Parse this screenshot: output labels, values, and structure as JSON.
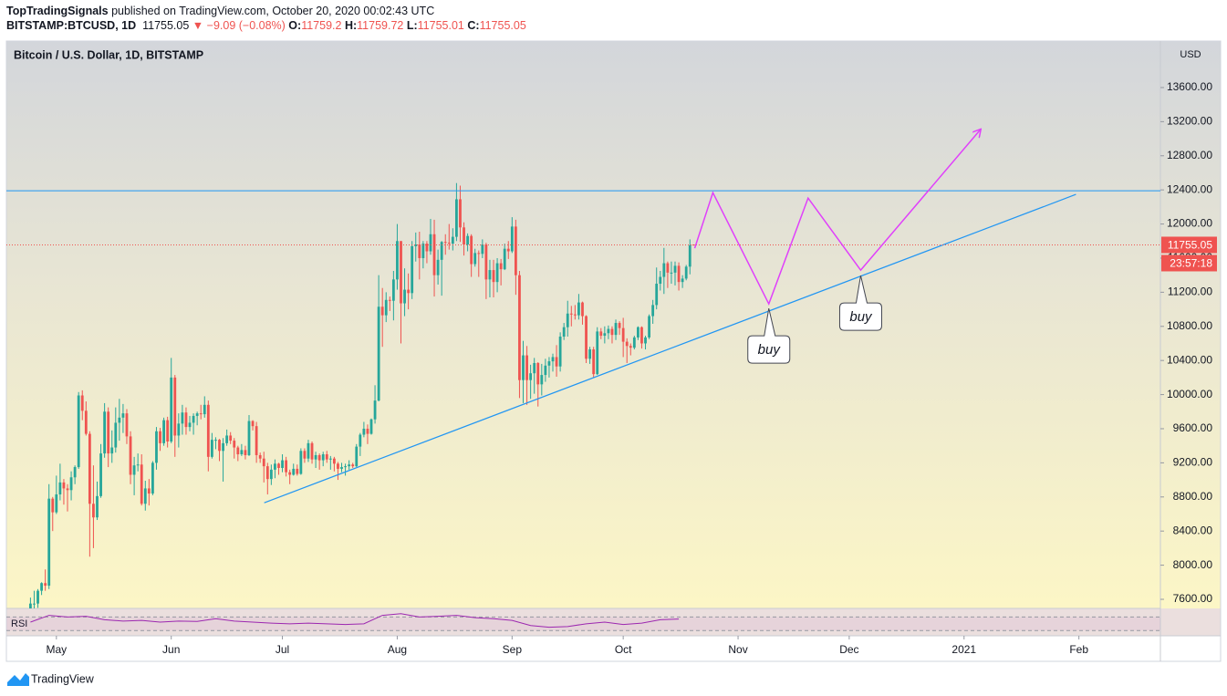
{
  "header": {
    "author": "TopTradingSignals",
    "published": " published on TradingView.com, October 20, 2020 00:02:43 UTC",
    "symbol": "BITSTAMP:BTCUSD, 1D",
    "change": "▼ −9.09 (−0.08%)",
    "o_label": "O:",
    "h_label": "H:",
    "l_label": "L:",
    "c_label": "C:"
  },
  "chart_data": {
    "type": "candlestick",
    "title": "Bitcoin / U.S. Dollar, 1D, BITSTAMP",
    "currency": "USD",
    "countdown": "23:57:18",
    "up_color": "#26a69a",
    "down_color": "#ef5350",
    "open": [
      7490,
      7550,
      7550,
      7700,
      7790,
      7760,
      8780,
      8620,
      8830,
      8970,
      8900,
      8880,
      9030,
      9150,
      9990,
      9810,
      9540,
      8720,
      8560,
      8810,
      9310,
      9800,
      9310,
      9380,
      9670,
      9730,
      9780,
      9510,
      9060,
      9170,
      9180,
      8720,
      8900,
      8840,
      9200,
      9570,
      9430,
      9700,
      9450,
      10200,
      9520,
      9660,
      9790,
      9620,
      9670,
      9750,
      9780,
      9770,
      9880,
      9270,
      9470,
      9470,
      9340,
      9430,
      9520,
      9460,
      9380,
      9300,
      9350,
      9290,
      9690,
      9630,
      9290,
      9250,
      9160,
      9010,
      9120,
      9190,
      9140,
      9230,
      9090,
      9060,
      9130,
      9070,
      9340,
      9250,
      9430,
      9240,
      9290,
      9230,
      9300,
      9240,
      9250,
      9190,
      9130,
      9150,
      9160,
      9180,
      9160,
      9390,
      9530,
      9600,
      9540,
      9710,
      9930,
      11030,
      10930,
      11110,
      11100,
      11350,
      11800,
      11070,
      11230,
      11190,
      11740,
      11760,
      11600,
      11770,
      11680,
      11880,
      11400,
      11580,
      11790,
      11780,
      11770,
      11850,
      12290,
      11960,
      11760,
      11860,
      11530,
      11660,
      11650,
      11760,
      11350,
      11460,
      11320,
      11540,
      11470,
      11710,
      11680,
      11970,
      11400,
      10170,
      10460,
      10170,
      10250,
      10370,
      10120,
      10230,
      10340,
      10390,
      10440,
      10330,
      10680,
      10790,
      10950,
      10940,
      10930,
      11080,
      10920,
      10420,
      10530,
      10240,
      10740,
      10690,
      10720,
      10770,
      10700,
      10840,
      10780,
      10620,
      10570,
      10550,
      10670,
      10790,
      10600,
      10670,
      10920,
      11050,
      11300,
      11380,
      11540,
      11430,
      11430,
      11510,
      11320,
      11360,
      11500,
      11759.2
    ],
    "high": [
      7620,
      7700,
      7720,
      7800,
      7950,
      8950,
      8800,
      9050,
      9190,
      9010,
      8950,
      9100,
      9170,
      10030,
      10050,
      9920,
      9570,
      9170,
      8980,
      9420,
      9900,
      9850,
      9580,
      9850,
      9950,
      9890,
      9830,
      9570,
      9270,
      9310,
      9300,
      8990,
      9010,
      9220,
      9620,
      9610,
      9730,
      9740,
      10430,
      10230,
      9780,
      9880,
      9850,
      9750,
      9780,
      9800,
      9880,
      9980,
      9930,
      9550,
      9500,
      9480,
      9490,
      9590,
      9560,
      9490,
      9400,
      9420,
      9400,
      9760,
      9700,
      9680,
      9320,
      9330,
      9200,
      9180,
      9240,
      9200,
      9300,
      9270,
      9120,
      9190,
      9180,
      9370,
      9370,
      9470,
      9450,
      9330,
      9310,
      9330,
      9340,
      9280,
      9270,
      9210,
      9200,
      9190,
      9230,
      9200,
      9420,
      9550,
      9680,
      9650,
      9720,
      10110,
      11400,
      11250,
      11200,
      11150,
      11450,
      12000,
      11800,
      11480,
      11420,
      11800,
      11900,
      11910,
      11800,
      11800,
      12060,
      12050,
      11700,
      11800,
      11880,
      12000,
      11950,
      12480,
      12450,
      12020,
      11890,
      11880,
      11710,
      11690,
      11820,
      11780,
      11580,
      11580,
      11600,
      11590,
      11770,
      11800,
      12080,
      12050,
      11450,
      10630,
      10570,
      10350,
      10430,
      10380,
      10360,
      10420,
      10440,
      10480,
      10580,
      10730,
      10840,
      11100,
      11040,
      11050,
      11180,
      11090,
      10930,
      10560,
      10560,
      10790,
      10780,
      10800,
      10810,
      10800,
      10880,
      10860,
      10900,
      10660,
      10600,
      10690,
      10800,
      10800,
      10690,
      10940,
      11110,
      11490,
      11450,
      11720,
      11560,
      11560,
      11560,
      11550,
      11400,
      11520,
      11820,
      11759.72
    ],
    "low": [
      7450,
      7450,
      7500,
      7650,
      7700,
      7720,
      8400,
      8600,
      8760,
      8710,
      8630,
      8760,
      8950,
      9130,
      9700,
      9520,
      8100,
      8200,
      8530,
      8790,
      9260,
      9150,
      9200,
      9320,
      9460,
      9550,
      9420,
      8950,
      8820,
      9100,
      8700,
      8640,
      8700,
      8820,
      9120,
      9340,
      9400,
      9380,
      9430,
      9270,
      9380,
      9530,
      9530,
      9570,
      9530,
      9640,
      9710,
      9730,
      9100,
      9250,
      9360,
      9220,
      8980,
      9400,
      9420,
      9250,
      9220,
      9280,
      9240,
      9280,
      9580,
      9200,
      9200,
      8970,
      8830,
      8940,
      9020,
      9060,
      9090,
      9040,
      8950,
      9050,
      9050,
      9060,
      9200,
      9210,
      9190,
      9140,
      9120,
      9160,
      9200,
      9120,
      9100,
      9000,
      9090,
      9050,
      9120,
      9140,
      9150,
      9280,
      9500,
      9420,
      9530,
      9660,
      9920,
      10560,
      10850,
      10980,
      10870,
      11230,
      10600,
      10920,
      11000,
      11120,
      11560,
      11350,
      11480,
      11540,
      11640,
      11150,
      11290,
      11160,
      11640,
      11700,
      11690,
      11800,
      11790,
      11630,
      11680,
      11380,
      11500,
      11380,
      11600,
      11120,
      11140,
      11140,
      11200,
      11280,
      11460,
      11590,
      11660,
      11170,
      9960,
      9900,
      9880,
      9950,
      10010,
      9860,
      9990,
      10150,
      10200,
      10270,
      10210,
      10270,
      10640,
      10680,
      10800,
      10880,
      10880,
      10820,
      10370,
      10360,
      10200,
      10230,
      10650,
      10600,
      10650,
      10600,
      10640,
      10700,
      10440,
      10370,
      10460,
      10530,
      10640,
      10540,
      10530,
      10650,
      10830,
      11000,
      11220,
      11180,
      11250,
      11300,
      11280,
      11220,
      11250,
      11340,
      11410,
      11755.01
    ],
    "close": [
      7550,
      7550,
      7700,
      7790,
      7760,
      8780,
      8620,
      8830,
      8970,
      8900,
      8880,
      9030,
      9150,
      9990,
      9810,
      9540,
      8720,
      8560,
      8810,
      9310,
      9800,
      9310,
      9380,
      9670,
      9730,
      9780,
      9510,
      9060,
      9170,
      9180,
      8720,
      8900,
      8840,
      9200,
      9570,
      9430,
      9700,
      9450,
      10200,
      9520,
      9660,
      9790,
      9620,
      9670,
      9750,
      9780,
      9770,
      9880,
      9270,
      9470,
      9470,
      9340,
      9430,
      9520,
      9460,
      9380,
      9300,
      9350,
      9290,
      9690,
      9630,
      9290,
      9250,
      9160,
      9010,
      9120,
      9190,
      9140,
      9230,
      9090,
      9060,
      9130,
      9070,
      9340,
      9250,
      9430,
      9240,
      9290,
      9230,
      9300,
      9240,
      9250,
      9190,
      9130,
      9150,
      9160,
      9180,
      9160,
      9390,
      9530,
      9600,
      9540,
      9710,
      9930,
      11030,
      10930,
      11110,
      11100,
      11350,
      11800,
      11070,
      11230,
      11190,
      11740,
      11760,
      11600,
      11770,
      11680,
      11880,
      11400,
      11580,
      11790,
      11780,
      11770,
      11850,
      12290,
      11960,
      11760,
      11860,
      11530,
      11660,
      11650,
      11760,
      11350,
      11460,
      11320,
      11540,
      11470,
      11710,
      11680,
      11970,
      11400,
      10170,
      10460,
      10170,
      10250,
      10370,
      10120,
      10230,
      10340,
      10390,
      10440,
      10330,
      10680,
      10790,
      10950,
      10940,
      10930,
      11080,
      10920,
      10420,
      10530,
      10240,
      10740,
      10690,
      10720,
      10770,
      10700,
      10840,
      10780,
      10620,
      10570,
      10550,
      10670,
      10790,
      10600,
      10670,
      10920,
      11050,
      11300,
      11380,
      11540,
      11430,
      11430,
      11510,
      11320,
      11360,
      11500,
      11750,
      11755.05
    ],
    "xlim": [
      -6.5,
      305
    ],
    "xticks": [
      {
        "value": 7,
        "label": "May"
      },
      {
        "value": 38,
        "label": "Jun"
      },
      {
        "value": 68,
        "label": "Jul"
      },
      {
        "value": 99,
        "label": "Aug"
      },
      {
        "value": 130,
        "label": "Sep"
      },
      {
        "value": 160,
        "label": "Oct"
      },
      {
        "value": 191,
        "label": "Nov"
      },
      {
        "value": 221,
        "label": "Dec"
      },
      {
        "value": 252,
        "label": "2021"
      },
      {
        "value": 283,
        "label": "Feb"
      }
    ],
    "ylim": [
      7493,
      14145
    ],
    "yticks": [
      {
        "value": 7600,
        "label": "7600.00"
      },
      {
        "value": 8000,
        "label": "8000.00"
      },
      {
        "value": 8400,
        "label": "8400.00"
      },
      {
        "value": 8800,
        "label": "8800.00"
      },
      {
        "value": 9200,
        "label": "9200.00"
      },
      {
        "value": 9600,
        "label": "9600.00"
      },
      {
        "value": 10000,
        "label": "10000.00"
      },
      {
        "value": 10400,
        "label": "10400.00"
      },
      {
        "value": 10800,
        "label": "10800.00"
      },
      {
        "value": 11200,
        "label": "11200.00"
      },
      {
        "value": 11600,
        "label": "11600.00"
      },
      {
        "value": 12000,
        "label": "12000.00"
      },
      {
        "value": 12400,
        "label": "12400.00"
      },
      {
        "value": 12800,
        "label": "12800.00"
      },
      {
        "value": 13200,
        "label": "13200.00"
      },
      {
        "value": 13600,
        "label": "13600.00"
      }
    ],
    "rsi": {
      "name": "RSI",
      "color": "#9c27b0",
      "step": 5,
      "ylim": [
        20,
        90
      ],
      "levels": [
        70,
        30
      ],
      "values": [
        55,
        75,
        70,
        72,
        62,
        58,
        60,
        55,
        58,
        57,
        65,
        58,
        55,
        52,
        50,
        52,
        50,
        48,
        50,
        75,
        80,
        70,
        72,
        75,
        68,
        65,
        60,
        45,
        40,
        42,
        50,
        55,
        48,
        52,
        62,
        64
      ]
    },
    "horizontal_line": {
      "y": 12390,
      "color": "#2196f3"
    },
    "trend_line": {
      "x": [
        63.1,
        282.2
      ],
      "y": [
        8732,
        12347
      ],
      "color": "#2196f3"
    },
    "projection": {
      "x": [
        179.3,
        184.2,
        199.3,
        209.9,
        224.1,
        256.4
      ],
      "y": [
        11716,
        12368,
        11063,
        12304,
        11459,
        13106
      ],
      "color": "#e040fb"
    },
    "annotations": [
      {
        "text": "buy",
        "x": 199.3,
        "y": 11010
      },
      {
        "text": "buy",
        "x": 224.1,
        "y": 11395
      }
    ]
  },
  "footer": {
    "brand": "TradingView"
  }
}
